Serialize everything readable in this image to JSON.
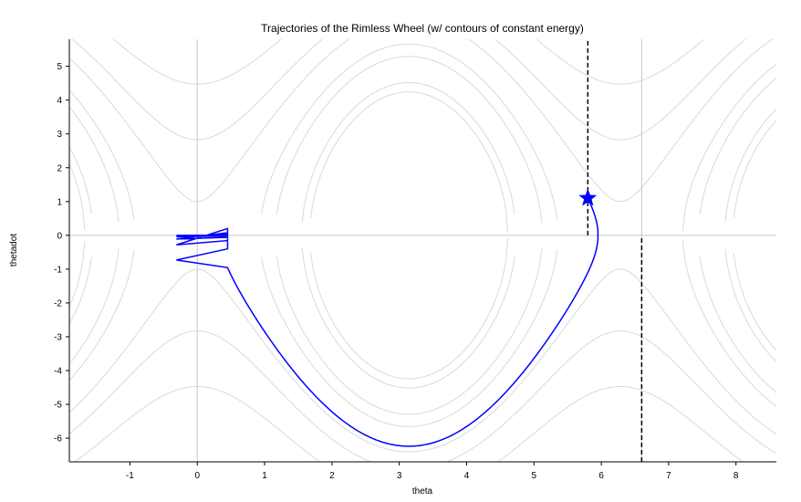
{
  "chart_data": {
    "type": "line",
    "title": "Trajectories of the Rimless Wheel (w/ contours of constant energy)",
    "xlabel": "theta",
    "ylabel": "thetadot",
    "xlim": [
      -1.9,
      8.6
    ],
    "ylim": [
      -6.7,
      5.8
    ],
    "xticks": [
      "-1",
      "0",
      "1",
      "2",
      "3",
      "4",
      "5",
      "6",
      "7",
      "8"
    ],
    "yticks": [
      "5",
      "4",
      "3",
      "2",
      "1",
      "0",
      "-1",
      "-2",
      "-3",
      "-4",
      "-5",
      "-6"
    ],
    "grid_lines": {
      "x": [
        0,
        6.6
      ],
      "y": [
        0
      ]
    },
    "contour_energies": [
      -1,
      0.2,
      4,
      6,
      10.5,
      14,
      20
    ],
    "dashed_lines": [
      {
        "x": 5.8,
        "y_range": [
          0,
          5.8
        ]
      },
      {
        "x": 6.6,
        "y_range": [
          -6.7,
          0
        ]
      }
    ],
    "start_marker": {
      "x": 5.8,
      "y": 1.1,
      "shape": "star"
    },
    "trajectory": {
      "theta_pre": 0.45,
      "theta_post": -0.31,
      "post_impact_velocity": -0.73,
      "steps_shown": 9,
      "color": "#0000ff"
    },
    "colors": {
      "contour": "#d9d9d9",
      "grid": "#c8c8c8",
      "trajectory": "#0000ff",
      "dashed": "#000000"
    }
  }
}
